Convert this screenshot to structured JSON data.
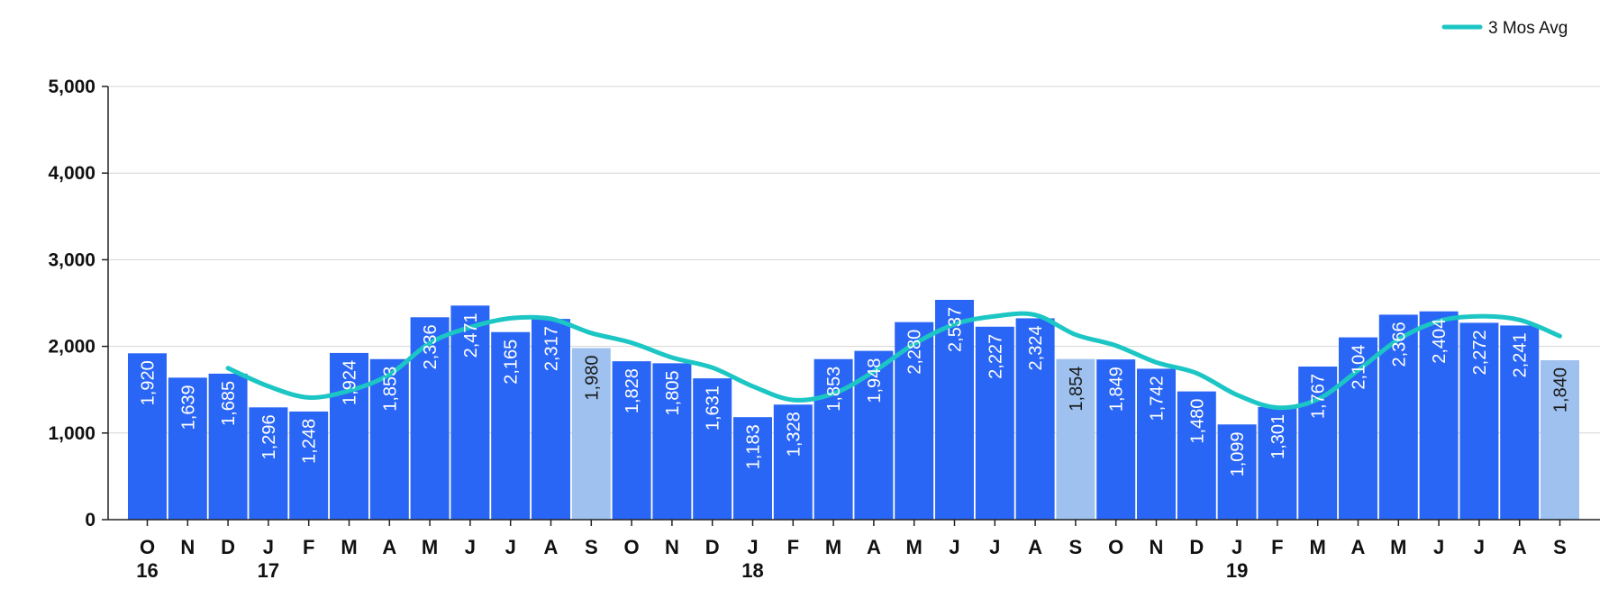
{
  "chart_data": {
    "type": "bar",
    "title": "",
    "xlabel": "",
    "ylabel": "",
    "ylim": [
      0,
      5000
    ],
    "yticks": [
      "0",
      "1,000",
      "2,000",
      "3,000",
      "4,000",
      "5,000"
    ],
    "grid": true,
    "legend_position": "top-right",
    "categories": [
      "O",
      "N",
      "D",
      "J",
      "F",
      "M",
      "A",
      "M",
      "J",
      "J",
      "A",
      "S",
      "O",
      "N",
      "D",
      "J",
      "F",
      "M",
      "A",
      "M",
      "J",
      "J",
      "A",
      "S",
      "O",
      "N",
      "D",
      "J",
      "F",
      "M",
      "A",
      "M",
      "J",
      "J",
      "A",
      "S"
    ],
    "year_labels": [
      {
        "index": 0,
        "label": "16"
      },
      {
        "index": 3,
        "label": "17"
      },
      {
        "index": 15,
        "label": "18"
      },
      {
        "index": 27,
        "label": "19"
      }
    ],
    "values": [
      1920,
      1639,
      1685,
      1296,
      1248,
      1924,
      1853,
      2336,
      2471,
      2165,
      2317,
      1980,
      1828,
      1805,
      1631,
      1183,
      1328,
      1853,
      1948,
      2280,
      2537,
      2227,
      2324,
      1854,
      1849,
      1742,
      1480,
      1099,
      1301,
      1767,
      2104,
      2366,
      2404,
      2272,
      2241,
      1840
    ],
    "value_labels": [
      "1,920",
      "1,639",
      "1,685",
      "1,296",
      "1,248",
      "1,924",
      "1,853",
      "2,336",
      "2,471",
      "2,165",
      "2,317",
      "1,980",
      "1,828",
      "1,805",
      "1,631",
      "1,183",
      "1,328",
      "1,853",
      "1,948",
      "2,280",
      "2,537",
      "2,227",
      "2,324",
      "1,854",
      "1,849",
      "1,742",
      "1,480",
      "1,099",
      "1,301",
      "1,767",
      "2,104",
      "2,366",
      "2,404",
      "2,272",
      "2,241",
      "1,840"
    ],
    "highlight_indices": [
      11,
      23,
      35
    ],
    "series": [
      {
        "name": "3 Mos Avg",
        "type": "line",
        "values": [
          null,
          null,
          1748,
          1540,
          1410,
          1489,
          1675,
          2038,
          2220,
          2324,
          2318,
          2154,
          2042,
          1871,
          1755,
          1540,
          1381,
          1455,
          1710,
          2027,
          2255,
          2348,
          2363,
          2135,
          2009,
          1815,
          1690,
          1440,
          1293,
          1389,
          1724,
          2079,
          2291,
          2347,
          2306,
          2118
        ]
      }
    ],
    "colors": {
      "bar": "#2a66f5",
      "bar_highlight": "#9ec1ef",
      "line": "#1cc6c4",
      "grid": "#d4d4d4",
      "axis": "#222222",
      "label_on_bar": "#ffffff",
      "label_on_highlight": "#1a1a1a"
    }
  }
}
